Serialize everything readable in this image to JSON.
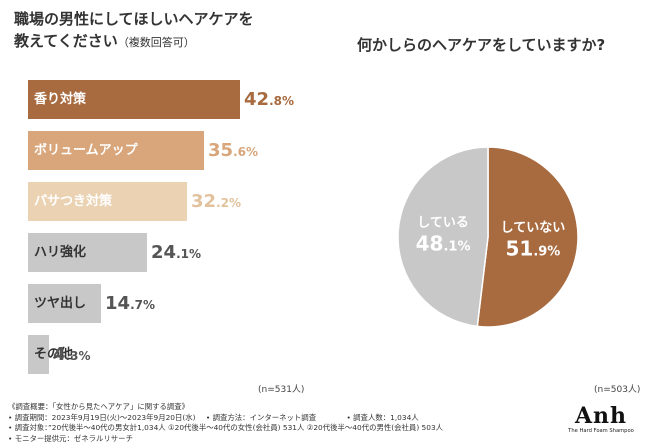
{
  "left_chart": {
    "title_line1": "職場の男性にしてほしいヘアケアを",
    "title_line2": "教えてください",
    "title_suffix": "（複数回答可）",
    "sample_note": "(n=531人)"
  },
  "right_chart": {
    "title": "何かしらのヘアケアをしていますか?",
    "sample_note": "(n=503人)"
  },
  "chart_data": [
    {
      "type": "bar",
      "orientation": "horizontal",
      "categories": [
        "香り対策",
        "ボリュームアップ",
        "パサつき対策",
        "ハリ強化",
        "ツヤ出し",
        "その他"
      ],
      "values": [
        42.8,
        35.6,
        32.2,
        24.1,
        14.7,
        4.3
      ],
      "value_labels": [
        {
          "int": "42",
          "dec": ".8",
          "unit": "%"
        },
        {
          "int": "35",
          "dec": ".6",
          "unit": "%"
        },
        {
          "int": "32",
          "dec": ".2",
          "unit": "%"
        },
        {
          "int": "24",
          "dec": ".1",
          "unit": "%"
        },
        {
          "int": "14",
          "dec": ".7",
          "unit": "%"
        },
        {
          "int": "4",
          "dec": ".3",
          "unit": "%"
        }
      ],
      "bar_colors": [
        "#a86a3f",
        "#d9a67c",
        "#ead2b3",
        "#c8c8c8",
        "#c8c8c8",
        "#c8c8c8"
      ],
      "label_colors": [
        "#ffffff",
        "#ffffff",
        "#ffffff",
        "#333333",
        "#333333",
        "#333333"
      ],
      "xlim": [
        0,
        45
      ]
    },
    {
      "type": "pie",
      "slices": [
        {
          "label": "していない",
          "value": 51.9,
          "display_int": "51",
          "display_dec": ".9",
          "unit": "%",
          "color": "#a86a3f",
          "text_color": "#ffffff"
        },
        {
          "label": "している",
          "value": 48.1,
          "display_int": "48",
          "display_dec": ".1",
          "unit": "%",
          "color": "#c8c8c8",
          "text_color": "#ffffff"
        }
      ],
      "start": "top",
      "direction": "clockwise"
    }
  ],
  "footer": {
    "overview": "《調査概要：「女性から見たヘアケア」に関する調査》",
    "period": "• 調査期間：2023年9月19日(火)〜2023年9月20日(水)",
    "method": "• 調査方法：インターネット調査",
    "count": "• 調査人数：1,034人",
    "target": "• 調査対象：”20代後半〜40代の男女計1,034人 ①20代後半〜40代の女性(会社員) 531人 ②20代後半〜40代の男性(会社員) 503人",
    "provider": "• モニター提供元：ゼネラルリサーチ"
  },
  "logo": {
    "text": "Anh",
    "subtitle": "The Hard Foam Shampoo"
  },
  "colors": {
    "accent": "#a86a3f",
    "accent_light": "#d9a67c",
    "accent_pale": "#ead2b3",
    "neutral": "#c8c8c8",
    "value_dark": "#a86a3f",
    "value_light": "#d9a67c",
    "value_pale": "#e2c29d",
    "value_gray": "#555555"
  }
}
